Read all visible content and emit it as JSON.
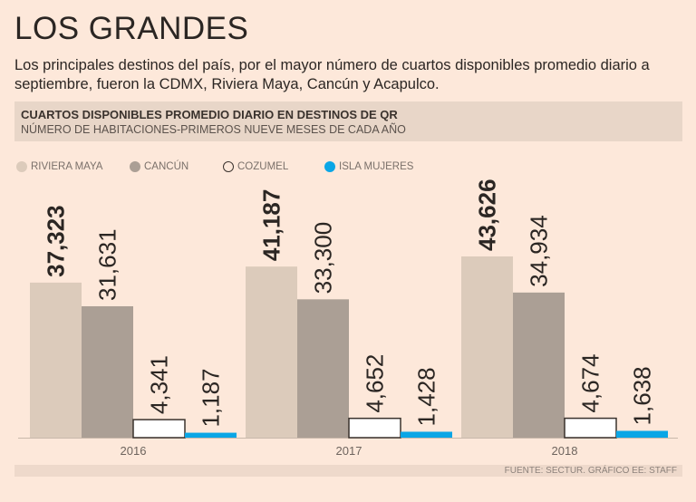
{
  "title": "LOS GRANDES",
  "subtitle": "Los principales destinos del país, por el mayor número de cuartos disponibles promedio diario a septiembre, fueron la CDMX, Riviera Maya, Cancún y Acapulco.",
  "source": "FUENTE: SECTUR. GRÁFICO EE: STAFF",
  "chart_data": {
    "type": "bar",
    "title": "CUARTOS DISPONIBLES PROMEDIO DIARIO EN DESTINOS DE QR",
    "subtitle": "NÚMERO DE HABITACIONES-PRIMEROS NUEVE MESES DE CADA AÑO",
    "categories": [
      "2016",
      "2017",
      "2018"
    ],
    "series": [
      {
        "name": "RIVIERA MAYA",
        "color": "#dccbbb",
        "values": [
          37323,
          41187,
          43626
        ],
        "labels": [
          "37,323",
          "41,187",
          "43,626"
        ]
      },
      {
        "name": "CANCÚN",
        "color": "#ab9f95",
        "values": [
          31631,
          33300,
          34934
        ],
        "labels": [
          "31,631",
          "33,300",
          "34,934"
        ]
      },
      {
        "name": "COZUMEL",
        "color": "#ffffff",
        "values": [
          4341,
          4652,
          4674
        ],
        "labels": [
          "4,341",
          "4,652",
          "4,674"
        ]
      },
      {
        "name": "ISLA MUJERES",
        "color": "#0aa6e6",
        "values": [
          1187,
          1428,
          1638
        ],
        "labels": [
          "1,187",
          "1,428",
          "1,638"
        ]
      }
    ],
    "ylim": [
      0,
      45000
    ],
    "legend": "top-left",
    "grid": false
  }
}
